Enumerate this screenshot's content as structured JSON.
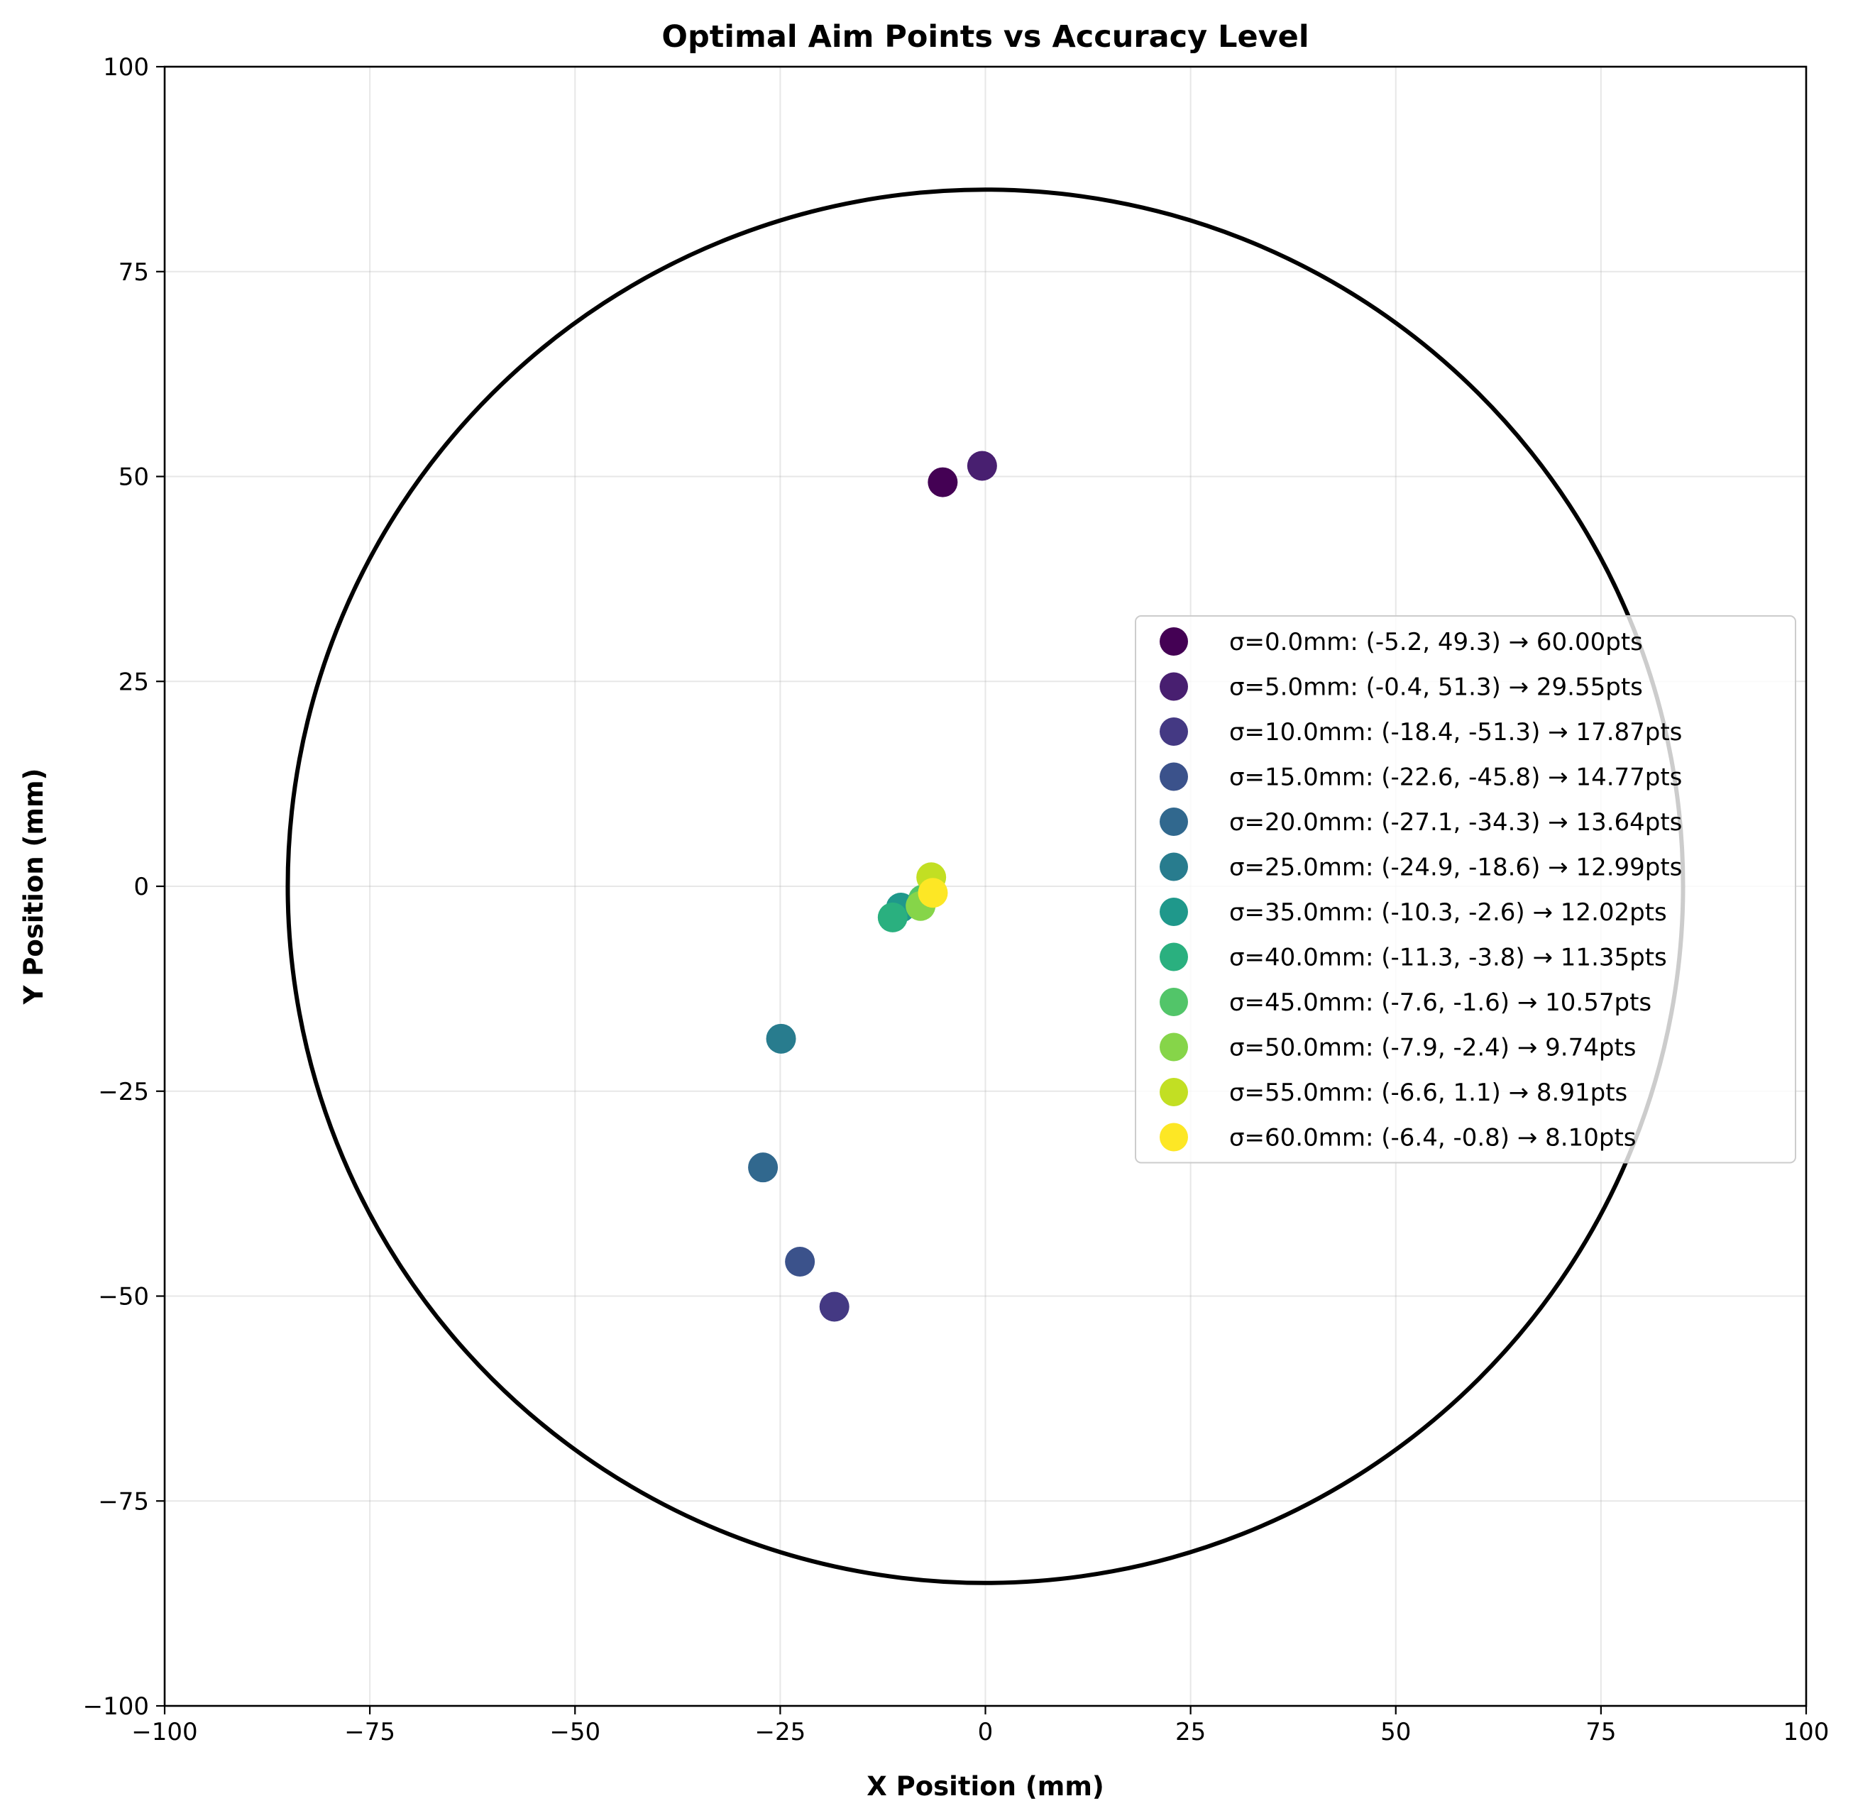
{
  "chart_data": {
    "type": "scatter",
    "title": "Optimal Aim Points vs Accuracy Level",
    "xlabel": "X Position (mm)",
    "ylabel": "Y Position (mm)",
    "xlim": [
      -100,
      100
    ],
    "ylim": [
      -100,
      100
    ],
    "xticks": [
      -100,
      -75,
      -50,
      -25,
      0,
      25,
      50,
      75,
      100
    ],
    "yticks": [
      -100,
      -75,
      -50,
      -25,
      0,
      25,
      50,
      75,
      100
    ],
    "xtick_labels": [
      "−100",
      "−75",
      "−50",
      "−25",
      "0",
      "25",
      "50",
      "75",
      "100"
    ],
    "ytick_labels": [
      "−100",
      "−75",
      "−50",
      "−25",
      "0",
      "25",
      "50",
      "75",
      "100"
    ],
    "grid": true,
    "legend_position": "center-right",
    "circle": {
      "center": [
        0,
        0
      ],
      "radius": 85,
      "color": "#000000"
    },
    "series": [
      {
        "name": "σ=0.0mm: (-5.2, 49.3) → 60.00pts",
        "x": -5.2,
        "y": 49.3,
        "color": "#440154"
      },
      {
        "name": "σ=5.0mm: (-0.4, 51.3) → 29.55pts",
        "x": -0.4,
        "y": 51.3,
        "color": "#481f70"
      },
      {
        "name": "σ=10.0mm: (-18.4, -51.3) → 17.87pts",
        "x": -18.4,
        "y": -51.3,
        "color": "#443983"
      },
      {
        "name": "σ=15.0mm: (-22.6, -45.8) → 14.77pts",
        "x": -22.6,
        "y": -45.8,
        "color": "#3b528b"
      },
      {
        "name": "σ=20.0mm: (-27.1, -34.3) → 13.64pts",
        "x": -27.1,
        "y": -34.3,
        "color": "#31688e"
      },
      {
        "name": "σ=25.0mm: (-24.9, -18.6) → 12.99pts",
        "x": -24.9,
        "y": -18.6,
        "color": "#287c8e"
      },
      {
        "name": "σ=35.0mm: (-10.3, -2.6) → 12.02pts",
        "x": -10.3,
        "y": -2.6,
        "color": "#1f988b"
      },
      {
        "name": "σ=40.0mm: (-11.3, -3.8) → 11.35pts",
        "x": -11.3,
        "y": -3.8,
        "color": "#2ab07f"
      },
      {
        "name": "σ=45.0mm: (-7.6, -1.6) → 10.57pts",
        "x": -7.6,
        "y": -1.6,
        "color": "#52c569"
      },
      {
        "name": "σ=50.0mm: (-7.9, -2.4) → 9.74pts",
        "x": -7.9,
        "y": -2.4,
        "color": "#86d549"
      },
      {
        "name": "σ=55.0mm: (-6.6, 1.1) → 8.91pts",
        "x": -6.6,
        "y": 1.1,
        "color": "#c2df23"
      },
      {
        "name": "σ=60.0mm: (-6.4, -0.8) → 8.10pts",
        "x": -6.4,
        "y": -0.8,
        "color": "#fde725"
      }
    ]
  }
}
